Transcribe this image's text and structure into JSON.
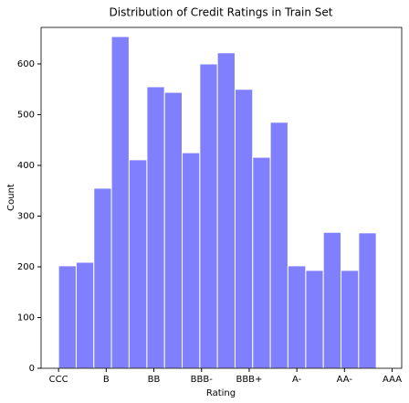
{
  "chart_data": {
    "type": "histogram",
    "title": "Distribution of Credit Ratings in Train Set",
    "x_label": "Rating",
    "y_label": "Count",
    "bins": [
      0,
      1.11,
      2.22,
      3.33,
      4.44,
      5.56,
      6.67,
      7.78,
      8.89,
      10,
      11.11,
      12.22,
      13.33,
      14.44,
      15.56,
      16.67,
      17.78,
      18.89,
      20
    ],
    "values": [
      202,
      209,
      355,
      654,
      411,
      555,
      544,
      425,
      600,
      622,
      550,
      416,
      485,
      202,
      193,
      268,
      193,
      267
    ],
    "color": "#8080ff",
    "xlim": [
      -1.1,
      21.6
    ],
    "xticks": [
      {
        "value": 0,
        "label": "CCC"
      },
      {
        "value": 3,
        "label": "B"
      },
      {
        "value": 6,
        "label": "BB"
      },
      {
        "value": 9,
        "label": "BBB-"
      },
      {
        "value": 12,
        "label": "BBB+"
      },
      {
        "value": 15,
        "label": "A-"
      },
      {
        "value": 18,
        "label": "AA-"
      },
      {
        "value": 21,
        "label": "AAA"
      }
    ],
    "ylim": [
      0,
      672
    ],
    "yticks": [
      0,
      100,
      200,
      300,
      400,
      500,
      600
    ]
  }
}
